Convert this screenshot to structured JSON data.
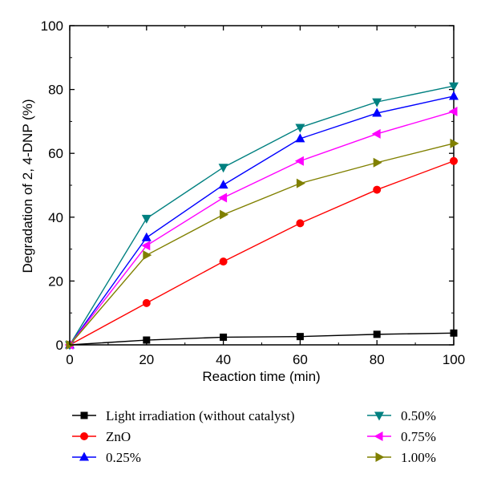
{
  "chart_data": {
    "type": "line",
    "title": "",
    "xlabel": "Reaction time (min)",
    "ylabel": "Degradation of 2, 4-DNP (%)",
    "xlim": [
      0,
      100
    ],
    "ylim": [
      0,
      100
    ],
    "xticks": [
      "0",
      "20",
      "40",
      "60",
      "80",
      "100"
    ],
    "yticks": [
      "0",
      "20",
      "40",
      "60",
      "80",
      "100"
    ],
    "x": [
      0,
      20,
      40,
      60,
      80,
      100
    ],
    "grid": false,
    "legend_position": "bottom",
    "series": [
      {
        "name": "Light irradiation (without catalyst)",
        "values": [
          0,
          1.5,
          2.4,
          2.6,
          3.3,
          3.7
        ],
        "color": "#000000",
        "marker": "square"
      },
      {
        "name": "ZnO",
        "values": [
          0,
          13.1,
          26.1,
          38.1,
          48.6,
          57.6
        ],
        "color": "#ff0000",
        "marker": "circle"
      },
      {
        "name": "0.25%",
        "values": [
          0,
          33.6,
          50.1,
          64.6,
          72.6,
          77.9
        ],
        "color": "#0000ff",
        "marker": "triangle-up"
      },
      {
        "name": "0.50%",
        "values": [
          0,
          39.6,
          55.6,
          68.1,
          76.1,
          81.1
        ],
        "color": "#008080",
        "marker": "triangle-down"
      },
      {
        "name": "0.75%",
        "values": [
          0,
          31.1,
          46.1,
          57.6,
          66.1,
          73.1
        ],
        "color": "#ff00ff",
        "marker": "triangle-left"
      },
      {
        "name": "1.00%",
        "values": [
          0,
          28.1,
          40.8,
          50.6,
          57.1,
          63.1
        ],
        "color": "#808000",
        "marker": "triangle-right"
      }
    ]
  }
}
